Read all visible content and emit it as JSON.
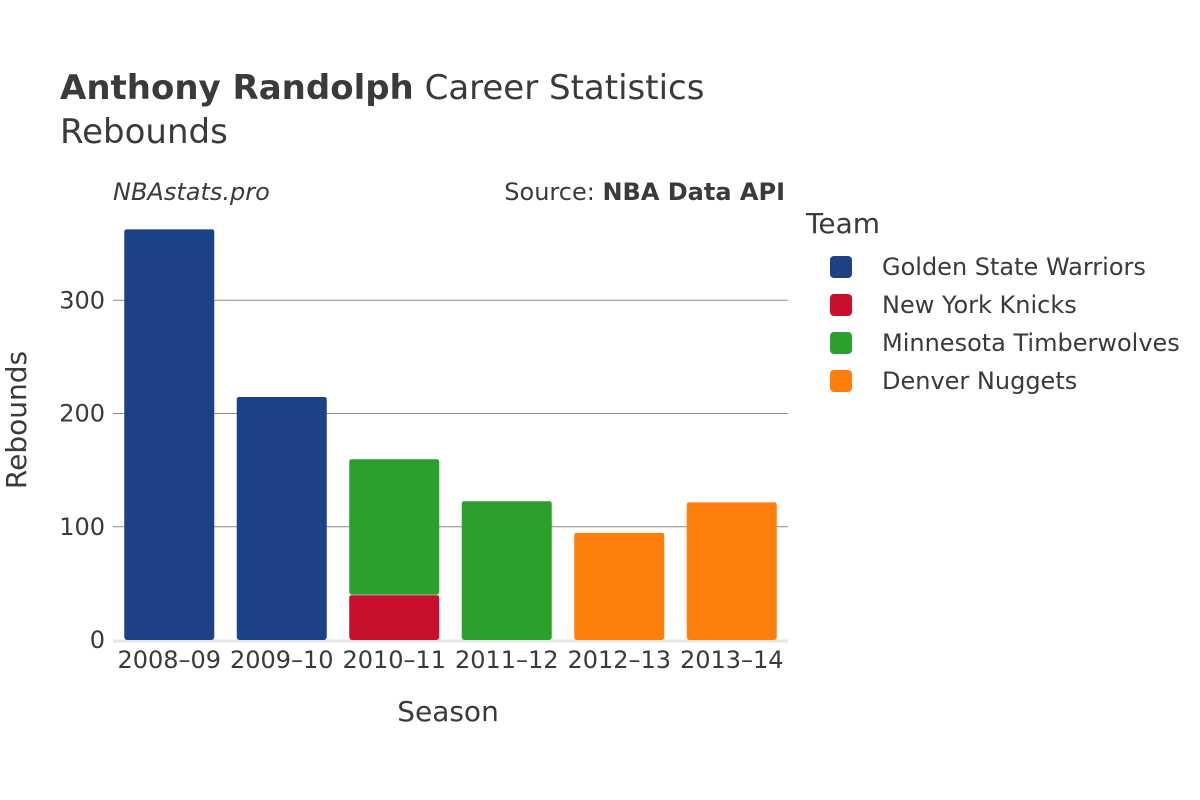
{
  "header": {
    "title_bold": "Anthony Randolph",
    "title_rest": " Career Statistics",
    "subtitle": "Rebounds"
  },
  "watermark": "NBAstats.pro",
  "source": {
    "prefix": "Source: ",
    "name": "NBA Data API"
  },
  "legend": {
    "title": "Team"
  },
  "chart_data": {
    "type": "bar",
    "stacked": true,
    "title": "Anthony Randolph Career Statistics Rebounds",
    "xlabel": "Season",
    "ylabel": "Rebounds",
    "ylim": [
      0,
      370
    ],
    "yticks": [
      0,
      100,
      200,
      300
    ],
    "grid": true,
    "legend_position": "right",
    "categories": [
      "2008–09",
      "2009–10",
      "2010–11",
      "2011–12",
      "2012–13",
      "2013–14"
    ],
    "series": [
      {
        "name": "Golden State Warriors",
        "color": "#1c4185",
        "values": [
          363,
          215,
          0,
          0,
          0,
          0
        ]
      },
      {
        "name": "New York Knicks",
        "color": "#c8102e",
        "values": [
          0,
          0,
          40,
          0,
          0,
          0
        ]
      },
      {
        "name": "Minnesota Timberwolves",
        "color": "#2ca02c",
        "values": [
          0,
          0,
          120,
          123,
          0,
          0
        ]
      },
      {
        "name": "Denver Nuggets",
        "color": "#ff7f0e",
        "values": [
          0,
          0,
          0,
          0,
          95,
          122
        ]
      }
    ]
  }
}
